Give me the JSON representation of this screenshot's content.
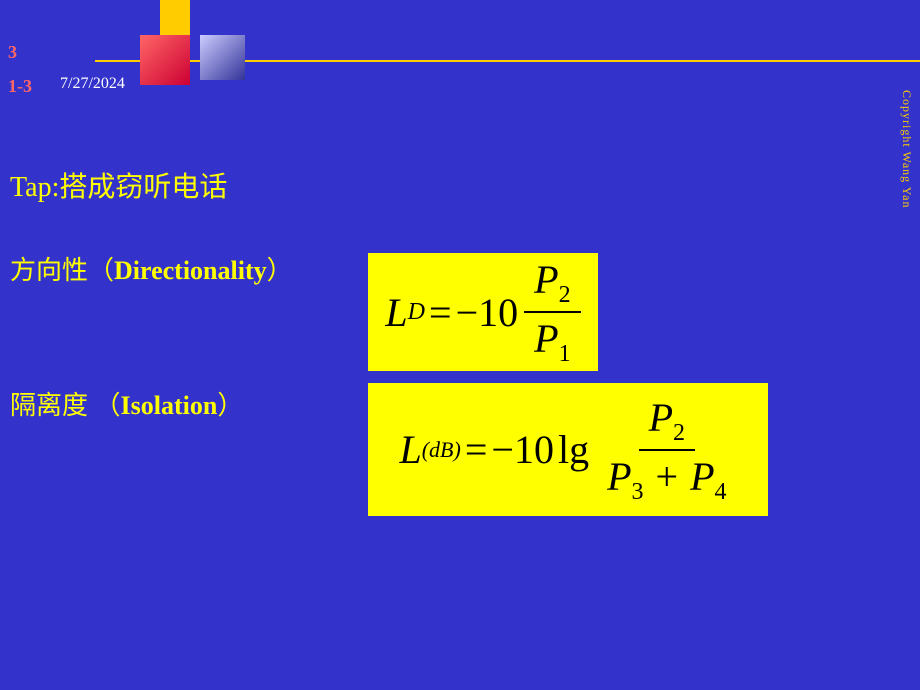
{
  "header": {
    "slide_number_top": "3",
    "slide_number_bottom": "1-3",
    "date": "7/27/2024",
    "copyright": "Copyright Wang Yan"
  },
  "content": {
    "tap_line": "Tap:搭成窃听电话",
    "directionality": {
      "label_zh": "方向性（",
      "label_en": "Directionality",
      "label_close": "）",
      "formula": {
        "lhs_var": "L",
        "lhs_sub": "D",
        "coeff": "−10",
        "num_var": "P",
        "num_sub": "2",
        "den_var": "P",
        "den_sub": "1"
      }
    },
    "isolation": {
      "label_zh": "隔离度 （",
      "label_en": "Isolation",
      "label_close": "）",
      "formula": {
        "lhs_var": "L",
        "lhs_sub": "(dB)",
        "coeff": "−10",
        "func": "lg",
        "num_var": "P",
        "num_sub": "2",
        "den_t1_var": "P",
        "den_t1_sub": "3",
        "den_plus": "+",
        "den_t2_var": "P",
        "den_t2_sub": "4"
      }
    }
  },
  "colors": {
    "background": "#3333cc",
    "accent_yellow": "#ffff00",
    "header_yellow": "#ffcc00",
    "slide_num": "#ff6666",
    "text_white": "#ffffff"
  }
}
